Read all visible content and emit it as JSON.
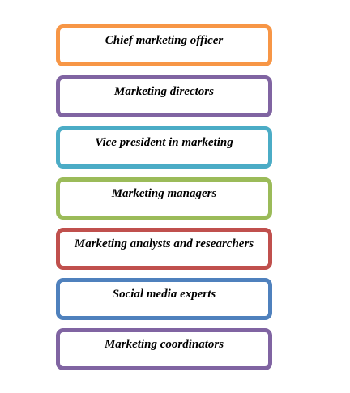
{
  "levels": [
    {
      "label": "Chief marketing officer",
      "color": "#F79646"
    },
    {
      "label": "Marketing directors",
      "color": "#8064A2"
    },
    {
      "label": "Vice president in marketing",
      "color": "#4BACC6"
    },
    {
      "label": "Marketing managers",
      "color": "#9BBB59"
    },
    {
      "label": "Marketing analysts and researchers",
      "color": "#C0504D"
    },
    {
      "label": "Social media experts",
      "color": "#4F81BD"
    },
    {
      "label": "Marketing coordinators",
      "color": "#8064A2"
    }
  ]
}
